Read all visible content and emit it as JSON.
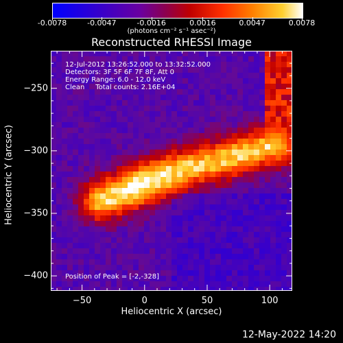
{
  "chart_data": {
    "type": "heatmap",
    "title": "Reconstructed RHESSI Image",
    "xlabel": "Heliocentric X (arcsec)",
    "ylabel": "Heliocentric Y (arcsec)",
    "xlim": [
      -75,
      118
    ],
    "ylim": [
      -412,
      -220
    ],
    "xticks": [
      -50,
      0,
      50,
      100
    ],
    "yticks": [
      -250,
      -300,
      -350,
      -400
    ],
    "colorbar": {
      "range": [
        -0.0078,
        0.0078
      ],
      "tick_values": [
        -0.0078,
        -0.0047,
        -0.0016,
        0.0016,
        0.0047,
        0.0078
      ],
      "tick_labels": [
        "-0.0078",
        "-0.0047",
        "-0.0016",
        "0.0016",
        "0.0047",
        "0.0078"
      ],
      "units": "(photons cm⁻² s⁻¹ asec⁻²)",
      "colors": [
        "#0000ff",
        "#5a00a0",
        "#c80000",
        "#ff6600",
        "#ffffff"
      ]
    },
    "annotations": [
      "12-Jul-2012 13:26:52.000 to 13:32:52.000",
      "Detectors: 3F 5F 6F 7F 8F, Att 0",
      "Energy Range: 6.0 - 12.0 keV",
      "Clean     Total counts: 2.16E+04"
    ],
    "peak_annotation": "Position of Peak = [-2,-328]",
    "peak_position": [
      -2,
      -328
    ],
    "source_ridge": [
      [
        -35,
        -340
      ],
      [
        -5,
        -328
      ],
      [
        30,
        -315
      ],
      [
        70,
        -305
      ],
      [
        105,
        -295
      ]
    ]
  },
  "footer": {
    "timestamp": "12-May-2022 14:20"
  }
}
